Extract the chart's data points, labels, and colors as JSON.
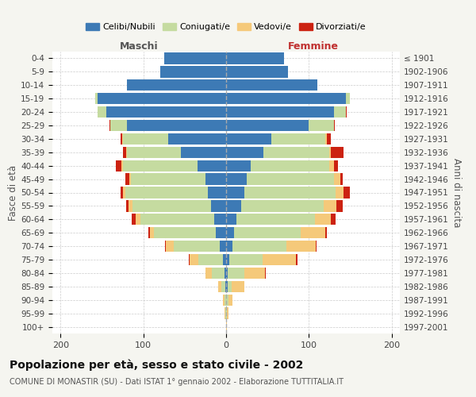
{
  "age_groups": [
    "0-4",
    "5-9",
    "10-14",
    "15-19",
    "20-24",
    "25-29",
    "30-34",
    "35-39",
    "40-44",
    "45-49",
    "50-54",
    "55-59",
    "60-64",
    "65-69",
    "70-74",
    "75-79",
    "80-84",
    "85-89",
    "90-94",
    "95-99",
    "100+"
  ],
  "birth_years": [
    "1997-2001",
    "1992-1996",
    "1987-1991",
    "1982-1986",
    "1977-1981",
    "1972-1976",
    "1967-1971",
    "1962-1966",
    "1957-1961",
    "1952-1956",
    "1947-1951",
    "1942-1946",
    "1937-1941",
    "1932-1936",
    "1927-1931",
    "1922-1926",
    "1917-1921",
    "1912-1916",
    "1907-1911",
    "1902-1906",
    "≤ 1901"
  ],
  "colors": {
    "celibi": "#3d7ab5",
    "coniugati": "#c5dba0",
    "vedovi": "#f5c97a",
    "divorziati": "#cc2211"
  },
  "maschi": {
    "celibi": [
      75,
      80,
      120,
      155,
      145,
      120,
      70,
      55,
      35,
      25,
      22,
      18,
      14,
      12,
      8,
      4,
      2,
      1,
      0,
      0,
      0
    ],
    "coniugati": [
      0,
      0,
      0,
      3,
      10,
      20,
      55,
      65,
      90,
      90,
      100,
      95,
      90,
      75,
      55,
      30,
      15,
      5,
      2,
      1,
      0
    ],
    "vedovi": [
      0,
      0,
      0,
      0,
      0,
      0,
      1,
      1,
      2,
      2,
      3,
      5,
      5,
      5,
      10,
      10,
      8,
      4,
      2,
      1,
      0
    ],
    "divorziati": [
      0,
      0,
      0,
      0,
      0,
      1,
      2,
      4,
      6,
      5,
      3,
      3,
      5,
      2,
      1,
      1,
      0,
      0,
      0,
      0,
      0
    ]
  },
  "femmine": {
    "celibi": [
      70,
      75,
      110,
      145,
      130,
      100,
      55,
      45,
      30,
      25,
      22,
      18,
      12,
      10,
      8,
      4,
      2,
      2,
      0,
      0,
      0
    ],
    "coniugati": [
      0,
      0,
      0,
      5,
      15,
      30,
      65,
      80,
      95,
      105,
      110,
      100,
      95,
      80,
      65,
      40,
      20,
      5,
      3,
      1,
      0
    ],
    "vedovi": [
      0,
      0,
      0,
      0,
      0,
      0,
      2,
      2,
      5,
      8,
      10,
      15,
      20,
      30,
      35,
      40,
      25,
      15,
      5,
      2,
      1
    ],
    "divorziati": [
      0,
      0,
      0,
      0,
      1,
      1,
      5,
      15,
      5,
      3,
      8,
      8,
      5,
      2,
      1,
      2,
      1,
      0,
      0,
      0,
      0
    ]
  },
  "xlim": 210,
  "title": "Popolazione per età, sesso e stato civile - 2002",
  "subtitle": "COMUNE DI MONASTIR (SU) - Dati ISTAT 1° gennaio 2002 - Elaborazione TUTTITALIA.IT",
  "xlabel_left": "Maschi",
  "xlabel_right": "Femmine",
  "ylabel_left": "Fasce di età",
  "ylabel_right": "Anni di nascita",
  "bg_color": "#f5f5f0",
  "plot_bg": "#ffffff",
  "legend_labels": [
    "Celibi/Nubili",
    "Coniugati/e",
    "Vedovi/e",
    "Divorziati/e"
  ]
}
